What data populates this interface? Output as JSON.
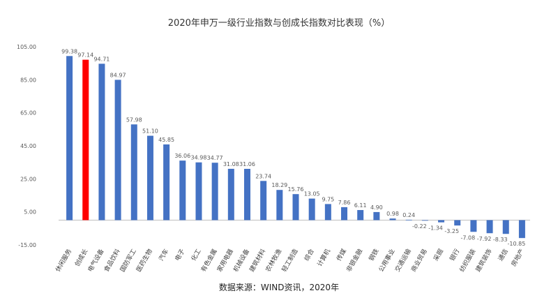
{
  "chart_data": {
    "type": "bar",
    "title": "2020年申万一级行业指数与创成长指数对比表现（%）",
    "source": "数据来源：WIND资讯，2020年",
    "categories": [
      "休闲服务",
      "创成长",
      "电气设备",
      "食品饮料",
      "国防军工",
      "医药生物",
      "汽车",
      "电子",
      "化工",
      "有色金属",
      "家用电器",
      "机械设备",
      "建筑材料",
      "农林牧渔",
      "轻工制造",
      "综合",
      "计算机",
      "传媒",
      "非银金融",
      "钢铁",
      "公用事业",
      "交通运输",
      "商业贸易",
      "采掘",
      "银行",
      "纺织服装",
      "建筑装饰",
      "通信",
      "房地产"
    ],
    "values": [
      99.38,
      97.14,
      94.71,
      84.97,
      57.98,
      51.1,
      45.85,
      36.06,
      34.98,
      34.77,
      31.08,
      31.06,
      23.74,
      18.29,
      15.76,
      13.05,
      9.75,
      7.86,
      6.11,
      4.9,
      0.98,
      0.24,
      -0.22,
      -1.34,
      -3.25,
      -7.08,
      -7.92,
      -8.33,
      -10.85
    ],
    "value_labels": [
      "99.38",
      "97.14",
      "94.71",
      "84.97",
      "57.98",
      "51.10",
      "45.85",
      "36.06",
      "34.98",
      "34.77",
      "31.08",
      "31.06",
      "23.74",
      "18.29",
      "15.76",
      "13.05",
      "9.75",
      "7.86",
      "6.11",
      "4.90",
      "0.98",
      "0.24",
      "-0.22",
      "-1.34",
      "-3.25",
      "-7.08",
      "-7.92",
      "-8.33",
      "-10.85"
    ],
    "ylim": [
      -15,
      105
    ],
    "yticks": [
      "105.00",
      "85.00",
      "65.00",
      "45.00",
      "25.00",
      "5.00",
      "-15.00"
    ],
    "ytick_values": [
      105,
      85,
      65,
      45,
      25,
      5,
      -15
    ],
    "grid": false,
    "colors": {
      "default": "#4472C4",
      "highlight": "#FF0000",
      "axis": "#BFBFBF",
      "label": "#595959"
    },
    "highlight_index": 1
  }
}
